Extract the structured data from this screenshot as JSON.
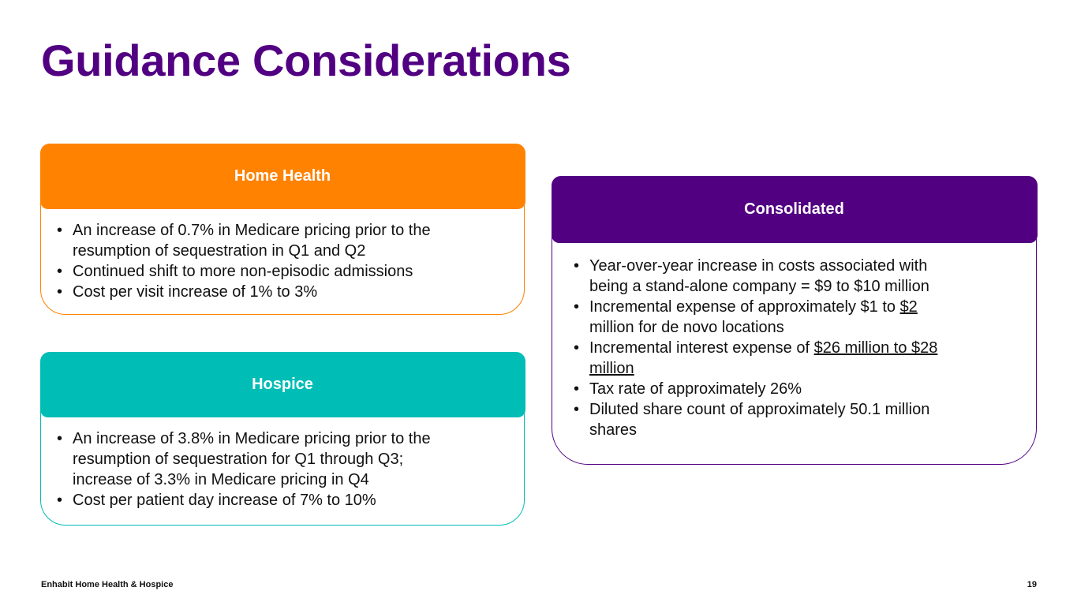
{
  "title": "Guidance Considerations",
  "colors": {
    "title": "#520082",
    "home_health": "#FF8200",
    "hospice": "#00BDB5",
    "consolidated": "#520082"
  },
  "home_health": {
    "header": "Home Health",
    "bullets": [
      {
        "lines": [
          "An increase of 0.7% in Medicare pricing prior to the",
          "resumption of sequestration in Q1 and Q2"
        ]
      },
      {
        "lines": [
          "Continued shift to more non-episodic admissions"
        ]
      },
      {
        "lines": [
          "Cost per visit increase of 1% to 3%"
        ]
      }
    ]
  },
  "hospice": {
    "header": "Hospice",
    "bullets": [
      {
        "lines": [
          "An increase of 3.8% in Medicare pricing prior to the",
          "resumption of sequestration for Q1 through Q3;",
          "increase of 3.3% in Medicare pricing in Q4"
        ]
      },
      {
        "lines": [
          "Cost per patient day increase of 7% to 10%"
        ]
      }
    ]
  },
  "consolidated": {
    "header": "Consolidated",
    "bullets": {
      "b1": {
        "line1": "Year-over-year increase in costs associated with",
        "line2": "being a stand-alone company = $9 to $10 million"
      },
      "b2": {
        "line1_pre": "Incremental expense of approximately $1 to ",
        "line1_u": "$2 ",
        "line2": "million for de novo locations"
      },
      "b3": {
        "line1_pre": "Incremental interest expense of ",
        "line1_u": "$26 million to $28 ",
        "line2_u": "million"
      },
      "b4": {
        "line1": "Tax rate of approximately 26%"
      },
      "b5": {
        "line1": "Diluted share count of approximately 50.1 million",
        "line2": "shares"
      }
    }
  },
  "footer": {
    "company": "Enhabit Home Health & Hospice",
    "page_number": "19"
  }
}
